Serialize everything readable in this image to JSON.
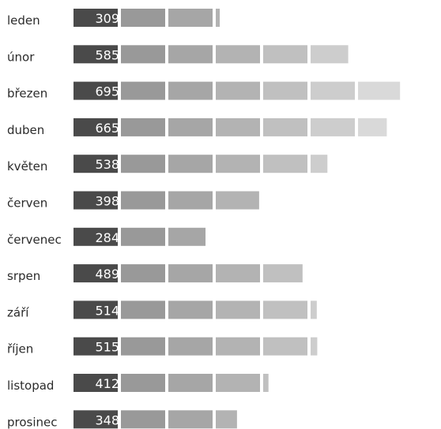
{
  "chart_data": {
    "type": "bar",
    "orientation": "horizontal",
    "grid": false,
    "legend": "none",
    "categories": [
      "leden",
      "únor",
      "březen",
      "duben",
      "květen",
      "červen",
      "červenec",
      "srpen",
      "září",
      "říjen",
      "listopad",
      "prosinec"
    ],
    "values": [
      309,
      585,
      695,
      665,
      538,
      398,
      284,
      489,
      514,
      515,
      412,
      348
    ],
    "segment_size": 100,
    "xlim": [
      0,
      700
    ],
    "segment_colors": [
      "#4a4a4a",
      "#999999",
      "#a6a6a6",
      "#b3b3b3",
      "#c0c0c0",
      "#cdcdcd",
      "#d9d9d9",
      "#e5e5e5"
    ],
    "label_color": "#ffffff",
    "text_color": "#2b2b2b"
  }
}
